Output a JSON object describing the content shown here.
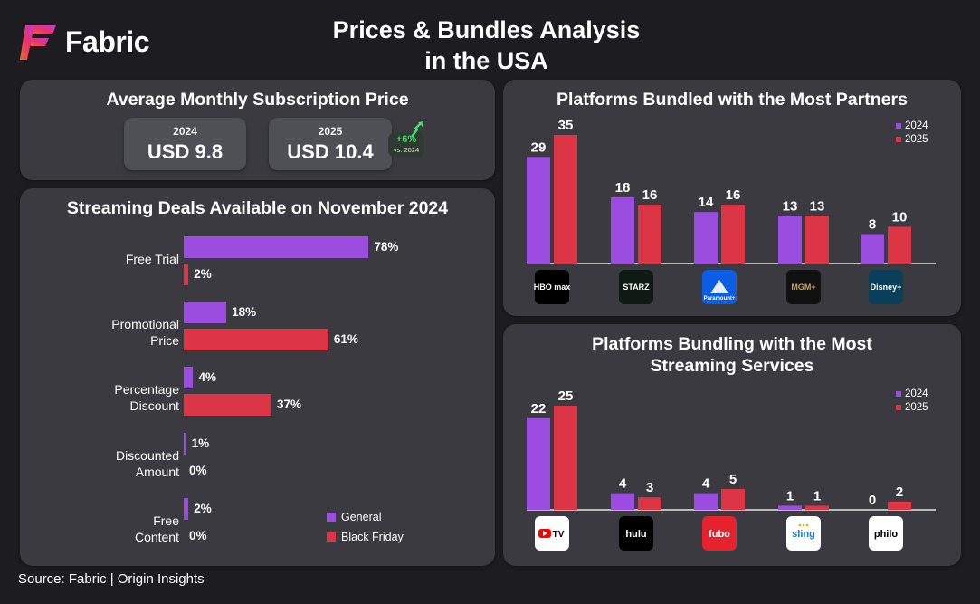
{
  "brand": {
    "name": "Fabric"
  },
  "title_line1": "Prices & Bundles Analysis",
  "title_line2": "in the USA",
  "colors": {
    "general": "#9b4de0",
    "black_friday": "#dc3545",
    "y2024": "#9b4de0",
    "y2025": "#dc3545",
    "growth": "#3fe36a"
  },
  "avg_price": {
    "title": "Average Monthly Subscription Price",
    "cards": [
      {
        "year": "2024",
        "value": "USD 9.8"
      },
      {
        "year": "2025",
        "value": "USD 10.4"
      }
    ],
    "growth": {
      "pct": "+6%",
      "vs": "vs. 2024"
    }
  },
  "source": "Source: Fabric | Origin Insights",
  "chart_data": [
    {
      "type": "bar",
      "orientation": "horizontal",
      "title": "Streaming Deals Available on November 2024",
      "categories": [
        "Free Trial",
        "Promotional Price",
        "Percentage Discount",
        "Discounted Amount",
        "Free Content"
      ],
      "category_lines": [
        [
          "Free Trial"
        ],
        [
          "Promotional",
          "Price"
        ],
        [
          "Percentage",
          "Discount"
        ],
        [
          "Discounted",
          "Amount"
        ],
        [
          "Free",
          "Content"
        ]
      ],
      "series": [
        {
          "name": "General",
          "values": [
            78,
            18,
            4,
            1,
            2
          ],
          "labels": [
            "78%",
            "18%",
            "4%",
            "1%",
            "2%"
          ]
        },
        {
          "name": "Black Friday",
          "values": [
            2,
            61,
            37,
            0,
            0
          ],
          "labels": [
            "2%",
            "61%",
            "37%",
            "0%",
            "0%"
          ]
        }
      ],
      "unit": "%",
      "legend": "bottom-right"
    },
    {
      "type": "bar",
      "title": "Platforms Bundled with the Most Partners",
      "categories": [
        "HBO Max",
        "Starz",
        "Paramount+",
        "MGM+",
        "Disney+"
      ],
      "logos": [
        "HBO max",
        "STARZ",
        "Paramount+",
        "MGM+",
        "Disney+"
      ],
      "series": [
        {
          "name": "2024",
          "values": [
            29,
            18,
            14,
            13,
            8
          ]
        },
        {
          "name": "2025",
          "values": [
            35,
            16,
            16,
            13,
            10
          ]
        }
      ],
      "ylim": [
        0,
        35
      ],
      "legend": "top-right"
    },
    {
      "type": "bar",
      "title": "Platforms Bundling with the Most Streaming Services",
      "title_lines": [
        "Platforms Bundling with the Most",
        "Streaming Services"
      ],
      "categories": [
        "YouTube TV",
        "Hulu",
        "fuboTV",
        "Sling",
        "Philo"
      ],
      "logos": [
        "TV",
        "hulu",
        "fubo",
        "sling",
        "philo"
      ],
      "series": [
        {
          "name": "2024",
          "values": [
            22,
            4,
            4,
            1,
            0
          ]
        },
        {
          "name": "2025",
          "values": [
            25,
            3,
            5,
            1,
            2
          ]
        }
      ],
      "ylim": [
        0,
        25
      ],
      "legend": "top-right"
    }
  ]
}
